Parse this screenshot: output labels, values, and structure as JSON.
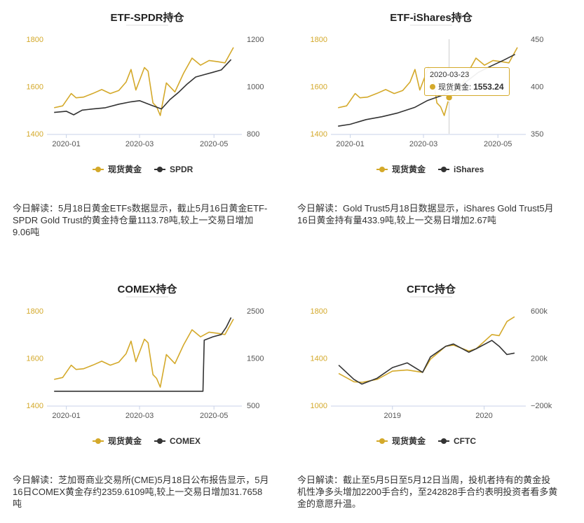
{
  "colors": {
    "gold": "#d4a92a",
    "etf": "#333333",
    "axis": "#c8d2e8"
  },
  "chart_data": [
    {
      "type": "line",
      "title": "ETF-SPDR持仓",
      "x_ticks": [
        "2020-01",
        "2020-03",
        "2020-05"
      ],
      "y_left": {
        "ticks": [
          "1800",
          "1600",
          "1400"
        ],
        "min": 1400,
        "max": 1800
      },
      "y_right": {
        "ticks": [
          "1200",
          "1000",
          "800"
        ],
        "min": 800,
        "max": 1200
      },
      "series": [
        {
          "name": "现货黄金",
          "axis": "left",
          "x": [
            "2019-12-23",
            "2019-12-30",
            "2020-01-06",
            "2020-01-10",
            "2020-01-16",
            "2020-01-24",
            "2020-01-31",
            "2020-02-07",
            "2020-02-14",
            "2020-02-20",
            "2020-02-24",
            "2020-02-28",
            "2020-03-06",
            "2020-03-09",
            "2020-03-13",
            "2020-03-16",
            "2020-03-19",
            "2020-03-24",
            "2020-03-31",
            "2020-04-07",
            "2020-04-14",
            "2020-04-21",
            "2020-04-28",
            "2020-05-05",
            "2020-05-11",
            "2020-05-18"
          ],
          "y": [
            1510,
            1518,
            1570,
            1552,
            1555,
            1571,
            1587,
            1570,
            1583,
            1619,
            1672,
            1585,
            1680,
            1665,
            1530,
            1514,
            1477,
            1615,
            1577,
            1655,
            1720,
            1690,
            1710,
            1705,
            1700,
            1765
          ]
        },
        {
          "name": "SPDR",
          "axis": "right",
          "x": [
            "2019-12-23",
            "2020-01-02",
            "2020-01-08",
            "2020-01-15",
            "2020-01-24",
            "2020-02-03",
            "2020-02-14",
            "2020-02-24",
            "2020-03-02",
            "2020-03-12",
            "2020-03-20",
            "2020-03-27",
            "2020-04-03",
            "2020-04-10",
            "2020-04-17",
            "2020-04-24",
            "2020-05-01",
            "2020-05-08",
            "2020-05-16"
          ],
          "y": [
            890,
            895,
            880,
            900,
            905,
            910,
            925,
            935,
            940,
            920,
            905,
            945,
            975,
            1010,
            1040,
            1050,
            1060,
            1070,
            1113.78
          ]
        }
      ],
      "legend": [
        "现货黄金",
        "SPDR"
      ]
    },
    {
      "type": "line",
      "title": "ETF-iShares持仓",
      "x_ticks": [
        "2020-01",
        "2020-03",
        "2020-05"
      ],
      "y_left": {
        "ticks": [
          "1800",
          "1600",
          "1400"
        ],
        "min": 1400,
        "max": 1800
      },
      "y_right": {
        "ticks": [
          "450",
          "400",
          "350"
        ],
        "min": 350,
        "max": 450
      },
      "series": [
        {
          "name": "现货黄金",
          "axis": "left",
          "x": [
            "2019-12-23",
            "2019-12-30",
            "2020-01-06",
            "2020-01-10",
            "2020-01-16",
            "2020-01-24",
            "2020-01-31",
            "2020-02-07",
            "2020-02-14",
            "2020-02-20",
            "2020-02-24",
            "2020-02-28",
            "2020-03-06",
            "2020-03-09",
            "2020-03-13",
            "2020-03-16",
            "2020-03-19",
            "2020-03-23",
            "2020-03-31",
            "2020-04-07",
            "2020-04-14",
            "2020-04-21",
            "2020-04-28",
            "2020-05-05",
            "2020-05-11",
            "2020-05-18"
          ],
          "y": [
            1510,
            1518,
            1570,
            1552,
            1555,
            1571,
            1587,
            1570,
            1583,
            1619,
            1672,
            1585,
            1680,
            1665,
            1530,
            1514,
            1477,
            1553.24,
            1577,
            1655,
            1720,
            1690,
            1710,
            1705,
            1700,
            1765
          ]
        },
        {
          "name": "iShares",
          "axis": "right",
          "x": [
            "2019-12-23",
            "2020-01-02",
            "2020-01-15",
            "2020-01-28",
            "2020-02-10",
            "2020-02-24",
            "2020-03-05",
            "2020-03-16",
            "2020-03-26",
            "2020-04-06",
            "2020-04-16",
            "2020-04-27",
            "2020-05-07",
            "2020-05-16"
          ],
          "y": [
            358,
            360,
            365,
            368,
            372,
            378,
            385,
            390,
            395,
            405,
            415,
            422,
            428,
            433.9
          ]
        }
      ],
      "tooltip": {
        "date": "2020-03-23",
        "label": "现货黄金:",
        "value": "1553.24"
      },
      "legend": [
        "现货黄金",
        "iShares"
      ]
    },
    {
      "type": "line",
      "title": "COMEX持仓",
      "x_ticks": [
        "2020-01",
        "2020-03",
        "2020-05"
      ],
      "y_left": {
        "ticks": [
          "1800",
          "1600",
          "1400"
        ],
        "min": 1400,
        "max": 1800
      },
      "y_right": {
        "ticks": [
          "2500",
          "1500",
          "500"
        ],
        "min": 500,
        "max": 2500
      },
      "series": [
        {
          "name": "现货黄金",
          "axis": "left",
          "x": [
            "2019-12-23",
            "2019-12-30",
            "2020-01-06",
            "2020-01-10",
            "2020-01-16",
            "2020-01-24",
            "2020-01-31",
            "2020-02-07",
            "2020-02-14",
            "2020-02-20",
            "2020-02-24",
            "2020-02-28",
            "2020-03-06",
            "2020-03-09",
            "2020-03-13",
            "2020-03-16",
            "2020-03-19",
            "2020-03-24",
            "2020-03-31",
            "2020-04-07",
            "2020-04-14",
            "2020-04-21",
            "2020-04-28",
            "2020-05-05",
            "2020-05-11",
            "2020-05-18"
          ],
          "y": [
            1510,
            1518,
            1570,
            1552,
            1555,
            1571,
            1587,
            1570,
            1583,
            1619,
            1672,
            1585,
            1680,
            1665,
            1530,
            1514,
            1477,
            1615,
            1577,
            1655,
            1720,
            1690,
            1710,
            1705,
            1700,
            1765
          ]
        },
        {
          "name": "COMEX",
          "axis": "right",
          "x": [
            "2019-12-23",
            "2020-01-15",
            "2020-02-15",
            "2020-03-15",
            "2020-04-15",
            "2020-04-23",
            "2020-04-24",
            "2020-05-01",
            "2020-05-08",
            "2020-05-12",
            "2020-05-16"
          ],
          "y": [
            800,
            800,
            800,
            800,
            800,
            800,
            1880,
            1950,
            2000,
            2150,
            2359.6109
          ]
        }
      ],
      "legend": [
        "现货黄金",
        "COMEX"
      ]
    },
    {
      "type": "line",
      "title": "CFTC持仓",
      "x_ticks": [
        "2019",
        "2020"
      ],
      "y_left": {
        "ticks": [
          "1800",
          "1400",
          "1000"
        ],
        "min": 1000,
        "max": 1800
      },
      "y_right": {
        "ticks": [
          "600k",
          "200k",
          "−200k"
        ],
        "min": -200000,
        "max": 600000
      },
      "series": [
        {
          "name": "现货黄金",
          "axis": "left",
          "x": [
            "2018-06",
            "2018-08",
            "2018-09",
            "2018-11",
            "2019-01",
            "2019-03",
            "2019-05",
            "2019-06",
            "2019-08",
            "2019-09",
            "2019-11",
            "2019-12",
            "2020-02",
            "2020-03",
            "2020-04",
            "2020-05"
          ],
          "y": [
            1270,
            1200,
            1195,
            1220,
            1290,
            1300,
            1280,
            1390,
            1500,
            1510,
            1460,
            1480,
            1600,
            1590,
            1710,
            1750
          ]
        },
        {
          "name": "CFTC",
          "axis": "right",
          "x": [
            "2018-06",
            "2018-08",
            "2018-09",
            "2018-11",
            "2019-01",
            "2019-03",
            "2019-05",
            "2019-06",
            "2019-08",
            "2019-09",
            "2019-11",
            "2019-12",
            "2020-02",
            "2020-03",
            "2020-04",
            "2020-05"
          ],
          "y": [
            140000,
            20000,
            -20000,
            30000,
            120000,
            160000,
            80000,
            210000,
            300000,
            320000,
            250000,
            280000,
            350000,
            300000,
            230000,
            242828
          ]
        }
      ],
      "legend": [
        "现货黄金",
        "CFTC"
      ]
    }
  ],
  "notes": [
    "今日解读：5月18日黄金ETFs数据显示，截止5月16日黄金ETF-SPDR Gold Trust的黄金持仓量1113.78吨,较上一交易日增加9.06吨",
    "今日解读：Gold Trust5月18日数据显示，iShares Gold Trust5月16日黄金持有量433.9吨,较上一交易日增加2.67吨",
    "今日解读：芝加哥商业交易所(CME)5月18日公布报告显示，5月16日COMEX黄金存约2359.6109吨,较上一交易日增加31.7658吨",
    "今日解读：截止至5月5日至5月12日当周，投机者持有的黄金投机性净多头增加2200手合约，至242828手合约表明投资者看多黄金的意愿升温。"
  ]
}
